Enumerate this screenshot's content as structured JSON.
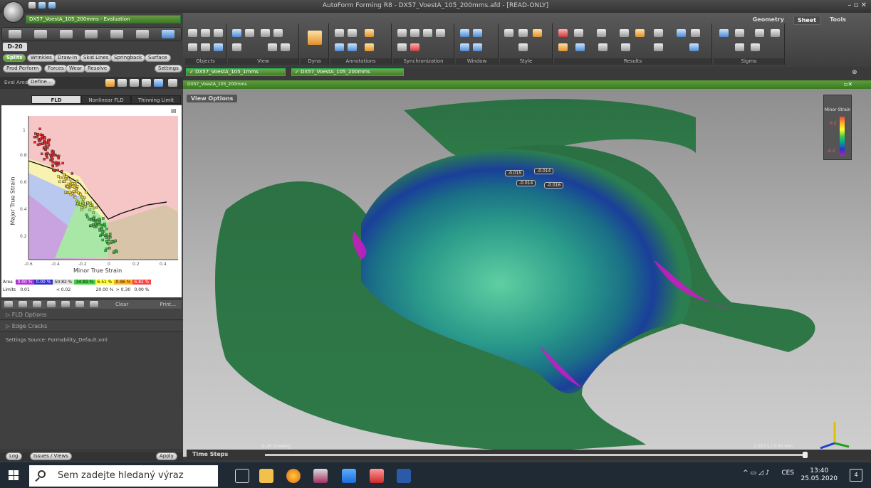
{
  "window": {
    "title": "AutoForm Forming R8 - DX57_VoestA_105_200mms.afd - [READ-ONLY]"
  },
  "left": {
    "doc_tab": "DX57_VoestA_105_200mms - Evaluation",
    "stage": "D-20",
    "result_tabs_row1": [
      "Splits",
      "Wrinkles",
      "Draw-In",
      "Skid Lines",
      "Springback",
      "Surface"
    ],
    "result_tabs_row2": [
      "Prod Perform",
      "Forces",
      "Wear",
      "Resolve"
    ],
    "settings_label": "Settings",
    "eval_area_label": "Eval Area",
    "define_label": "Define...",
    "fld_tabs": [
      "FLD",
      "Nonlinear FLD",
      "Thinning Limit"
    ],
    "fld": {
      "ylabel": "Major True Strain",
      "xlabel": "Minor True Strain",
      "yticks": [
        "1",
        "0.8",
        "0.6",
        "0.4",
        "0.2"
      ],
      "xticks": [
        "-0.6",
        "-0.4",
        "-0.2",
        "0",
        "0.2",
        "0.4"
      ],
      "area_label": "Area",
      "limits_label": "Limits",
      "area_values": [
        "0.00 %",
        "0.00 %",
        "50.82 %",
        "34.89 %",
        "6.51 %",
        "0.96 %",
        "6.82 %"
      ],
      "limit_values": [
        "0.01",
        "",
        "< 0.02",
        "",
        "20.00 %",
        "> 0.30",
        "0.00 %"
      ],
      "clear_label": "Clear",
      "print_label": "Print..."
    },
    "sections": [
      "▷ FLD Options",
      "▷ Edge Cracks"
    ],
    "settings_source": "Settings Source:  Formability_Default.xml",
    "bottom_tabs": [
      "Log",
      "Issues / Views"
    ],
    "apply_label": "Apply"
  },
  "ribbon": {
    "tabs": [
      "Geometry",
      "Sheet",
      "Tools"
    ],
    "groups": [
      "Objects",
      "View",
      "Dyna",
      "Annotations",
      "Synchronization",
      "Window",
      "Style",
      "Results",
      "Sigma"
    ]
  },
  "doc_tabs": [
    "✓ DX57_VoestA_105_1mms",
    "✓ DX57_VoestA_105_200mms"
  ],
  "viewport": {
    "header": "DX57_VoestA_105_200mms",
    "view_options": "View Options",
    "legend_title": "Minor Strain",
    "legend_max": "0.2",
    "legend_min": "-0.2",
    "tags": [
      "-0.015",
      "-0.014",
      "-0.014",
      "-0.016"
    ],
    "stage_caption": "D-20 Drawing",
    "time_readout": "1.010 s / 0.00 mm",
    "time_steps": "Time Steps"
  },
  "taskbar": {
    "search_placeholder": "Sem zadejte hledaný výraz",
    "lang": "CES",
    "time": "13:40",
    "date": "25.05.2020",
    "notif_count": "4"
  }
}
